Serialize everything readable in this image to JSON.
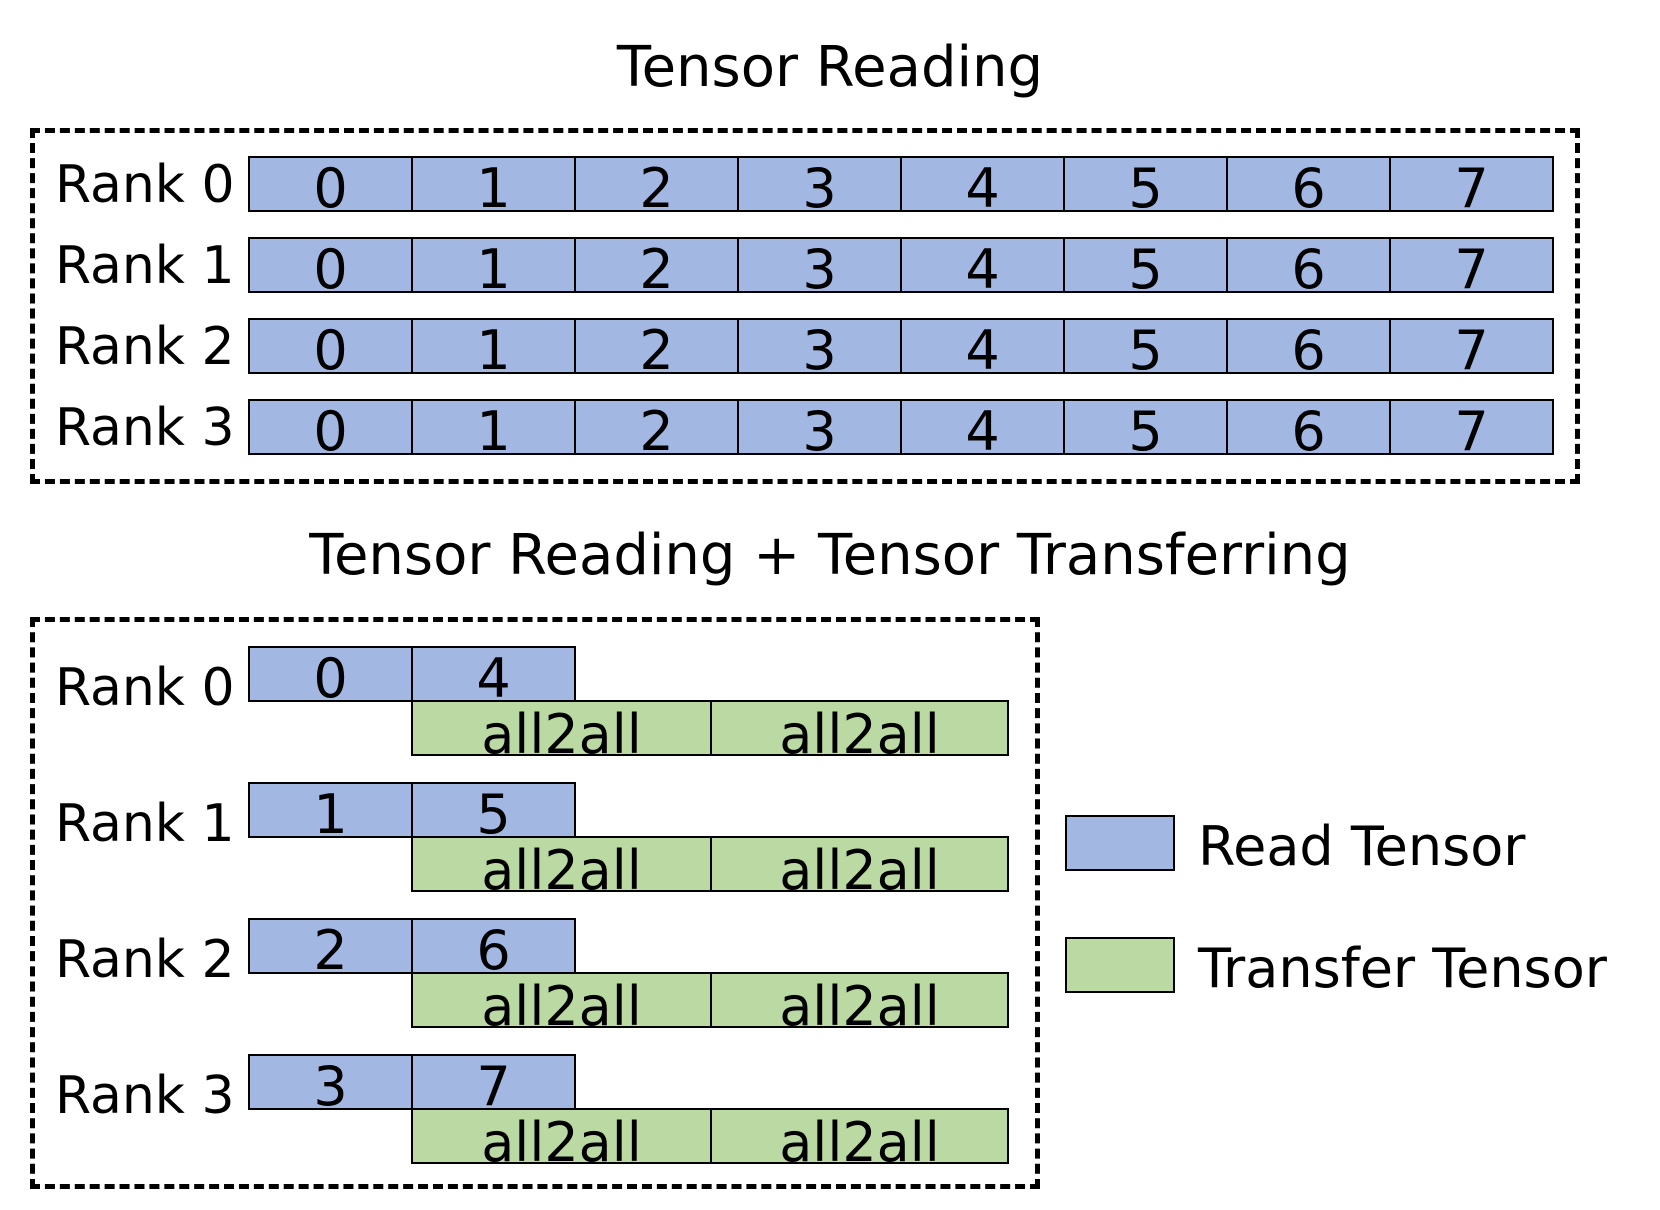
{
  "top": {
    "title": "Tensor Reading",
    "ranks": [
      {
        "label": "Rank 0",
        "tensors": [
          "0",
          "1",
          "2",
          "3",
          "4",
          "5",
          "6",
          "7"
        ]
      },
      {
        "label": "Rank 1",
        "tensors": [
          "0",
          "1",
          "2",
          "3",
          "4",
          "5",
          "6",
          "7"
        ]
      },
      {
        "label": "Rank 2",
        "tensors": [
          "0",
          "1",
          "2",
          "3",
          "4",
          "5",
          "6",
          "7"
        ]
      },
      {
        "label": "Rank 3",
        "tensors": [
          "0",
          "1",
          "2",
          "3",
          "4",
          "5",
          "6",
          "7"
        ]
      }
    ]
  },
  "bottom": {
    "title": "Tensor Reading + Tensor Transferring",
    "ranks": [
      {
        "label": "Rank 0",
        "reads": [
          "0",
          "4"
        ],
        "transfers": [
          "all2all",
          "all2all"
        ]
      },
      {
        "label": "Rank 1",
        "reads": [
          "1",
          "5"
        ],
        "transfers": [
          "all2all",
          "all2all"
        ]
      },
      {
        "label": "Rank 2",
        "reads": [
          "2",
          "6"
        ],
        "transfers": [
          "all2all",
          "all2all"
        ]
      },
      {
        "label": "Rank 3",
        "reads": [
          "3",
          "7"
        ],
        "transfers": [
          "all2all",
          "all2all"
        ]
      }
    ]
  },
  "legend": {
    "read": {
      "label": "Read Tensor",
      "color": "#a3b7e3"
    },
    "transfer": {
      "label": "Transfer Tensor",
      "color": "#bbdaa3"
    }
  }
}
